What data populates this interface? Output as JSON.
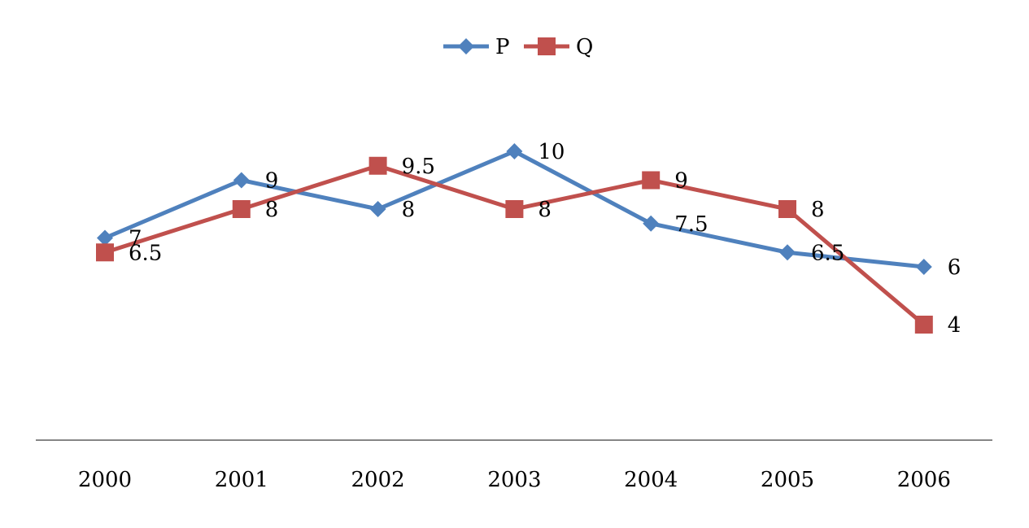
{
  "chart_data": {
    "type": "line",
    "title": "",
    "xlabel": "",
    "ylabel": "",
    "categories": [
      "2000",
      "2001",
      "2002",
      "2003",
      "2004",
      "2005",
      "2006"
    ],
    "ylim": [
      0,
      14
    ],
    "grid": false,
    "y_axis_visible": false,
    "legend_position": "top-center",
    "series": [
      {
        "name": "P",
        "values": [
          7,
          9,
          8,
          10,
          7.5,
          6.5,
          6
        ],
        "color": "#4F81BD",
        "marker": "diamond"
      },
      {
        "name": "Q",
        "values": [
          6.5,
          8,
          9.5,
          8,
          9,
          8,
          4
        ],
        "color": "#C0504D",
        "marker": "square"
      }
    ]
  }
}
